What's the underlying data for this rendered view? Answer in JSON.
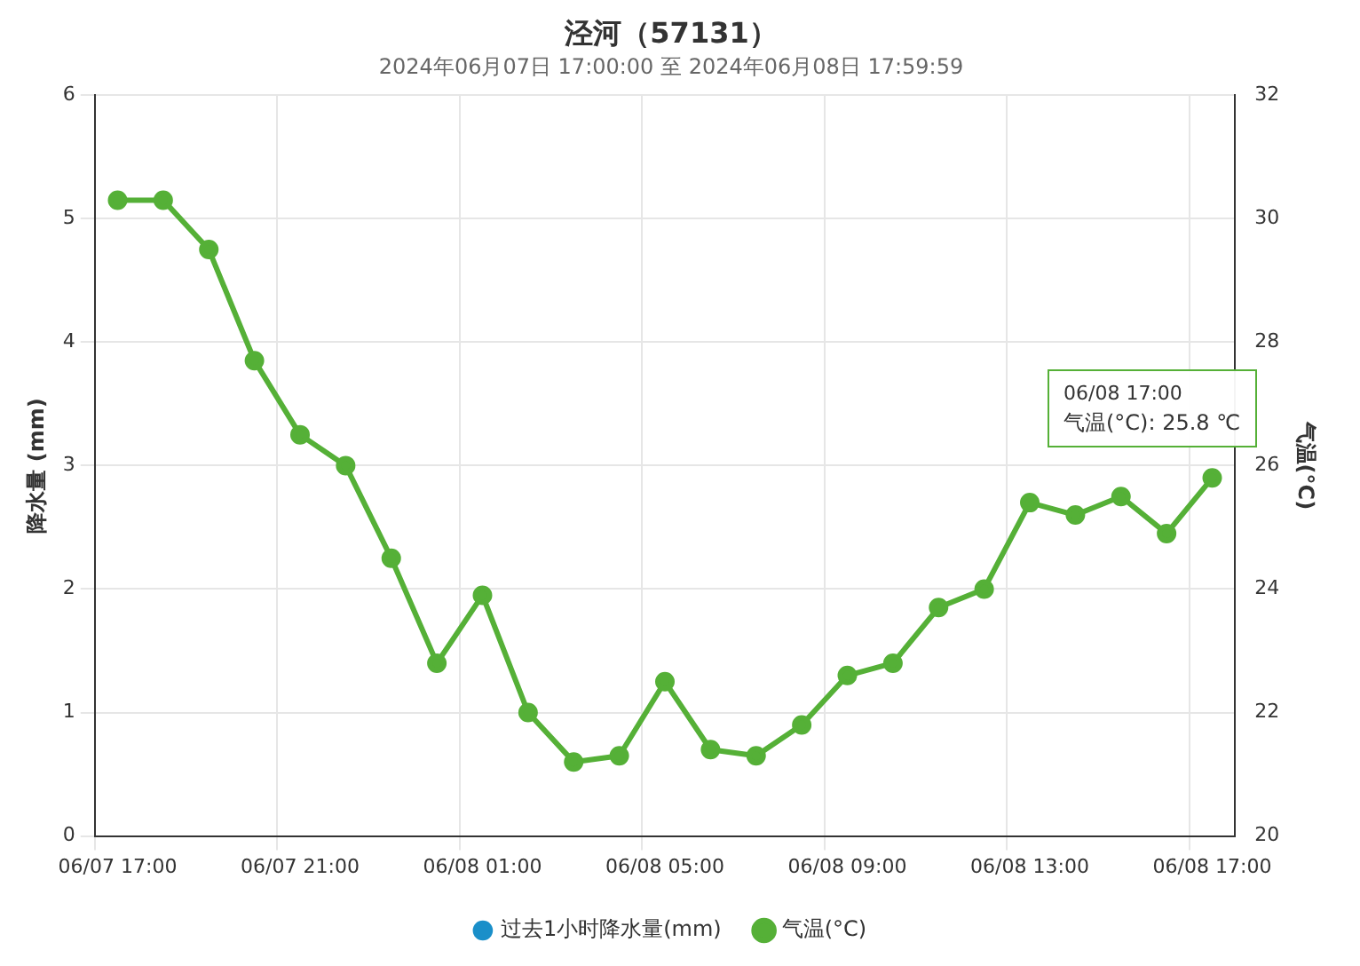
{
  "chart_data": {
    "type": "line",
    "title": "泾河（57131）",
    "subtitle": "2024年06月07日 17:00:00 至 2024年06月08日 17:59:59",
    "ylabel": "降水量 (mm)",
    "y2label": "气温(°C)",
    "categories": [
      "06/07 17:00",
      null,
      null,
      null,
      "06/07 21:00",
      null,
      null,
      null,
      "06/08 01:00",
      null,
      null,
      null,
      "06/08 05:00",
      null,
      null,
      null,
      "06/08 09:00",
      null,
      null,
      null,
      "06/08 13:00",
      null,
      null,
      null,
      "06/08 17:00"
    ],
    "series": [
      {
        "name": "过去1小时降水量(mm)",
        "type": "bar",
        "color": "#1a8fc9",
        "values": [
          0,
          0,
          0,
          0,
          0,
          0,
          0,
          0,
          0,
          0,
          0,
          0,
          0,
          0,
          0,
          0,
          0,
          0,
          0,
          0,
          0,
          0,
          0,
          0,
          0
        ]
      },
      {
        "name": "气温(°C)",
        "axis": "y2",
        "color": "#55b037",
        "values": [
          30.3,
          30.3,
          29.5,
          27.7,
          26.5,
          26.0,
          24.5,
          22.8,
          23.9,
          22.0,
          21.2,
          21.3,
          22.5,
          21.4,
          21.3,
          21.8,
          22.6,
          22.8,
          23.7,
          24.0,
          25.4,
          25.2,
          25.5,
          24.9,
          25.8
        ]
      }
    ],
    "ylim": [
      0,
      6
    ],
    "yticks": [
      0,
      1,
      2,
      3,
      4,
      5,
      6
    ],
    "y2lim": [
      20,
      32
    ],
    "y2ticks": [
      20,
      22,
      24,
      26,
      28,
      30,
      32
    ],
    "grid": true,
    "legend": "bottom",
    "marker": "circle",
    "line_style": "solid",
    "annotations": [
      "06/08 17:00\n气温(°C): 25.8 ℃"
    ]
  }
}
